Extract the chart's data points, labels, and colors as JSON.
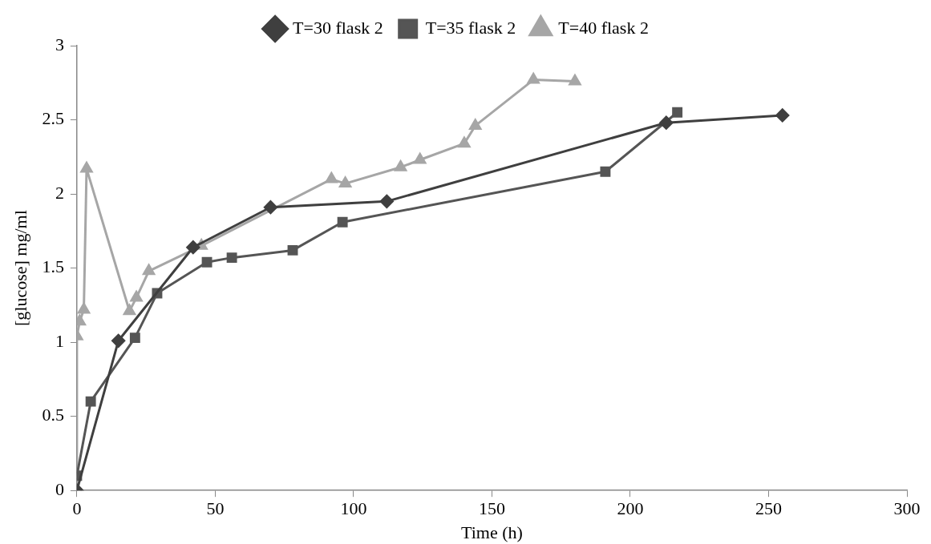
{
  "chart_data": {
    "type": "line",
    "xlabel": "Time (h)",
    "ylabel": "[glucose] mg/ml",
    "xlim": [
      0,
      300
    ],
    "xticks": [
      0,
      50,
      100,
      150,
      200,
      250,
      300
    ],
    "ylim": [
      0,
      3
    ],
    "yticks": [
      0,
      0.5,
      1,
      1.5,
      2,
      2.5,
      3
    ],
    "grid": false,
    "legend": "top",
    "line_style": "solid",
    "series": [
      {
        "name": "T=30 flask 2",
        "color": "#3f3f3f",
        "marker": "diamond",
        "x": [
          0,
          15,
          42,
          70,
          112,
          213,
          255
        ],
        "values": [
          0,
          1.01,
          1.64,
          1.91,
          1.95,
          2.48,
          2.53
        ]
      },
      {
        "name": "T=35 flask 2",
        "color": "#555555",
        "marker": "square",
        "x": [
          0,
          5,
          21,
          29,
          47,
          56,
          78,
          96,
          191,
          217
        ],
        "values": [
          0.1,
          0.6,
          1.03,
          1.33,
          1.54,
          1.57,
          1.62,
          1.81,
          2.15,
          2.55
        ]
      },
      {
        "name": "T=40 flask 2",
        "color": "#a6a6a6",
        "marker": "triangle",
        "x": [
          0,
          0,
          1,
          2.5,
          3.5,
          19,
          21.5,
          26,
          45,
          92,
          97,
          117,
          124,
          140,
          144,
          165,
          180
        ],
        "values": [
          0,
          1.04,
          1.14,
          1.22,
          2.17,
          1.21,
          1.3,
          1.48,
          1.65,
          2.1,
          2.07,
          2.18,
          2.23,
          2.34,
          2.46,
          2.77,
          2.76
        ]
      }
    ]
  }
}
